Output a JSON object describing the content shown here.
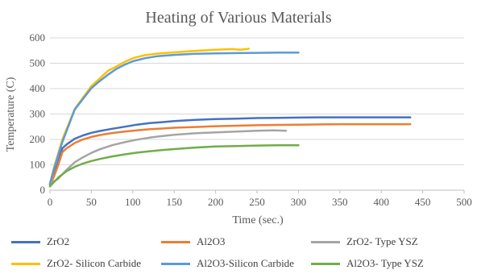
{
  "chart_data": {
    "type": "line",
    "title": "Heating of Various Materials",
    "xlabel": "Time (sec.)",
    "ylabel": "Temperature (C)",
    "xlim": [
      0,
      500
    ],
    "ylim": [
      0,
      600
    ],
    "xticks": [
      "0",
      "50",
      "100",
      "150",
      "200",
      "250",
      "300",
      "350",
      "400",
      "450",
      "500"
    ],
    "yticks": [
      "0",
      "100",
      "200",
      "300",
      "400",
      "500",
      "600"
    ],
    "grid": "horizontal",
    "legend_position": "bottom",
    "series": [
      {
        "name": "ZrO2",
        "color": "#4472C4",
        "points": [
          [
            0,
            22
          ],
          [
            5,
            60
          ],
          [
            10,
            110
          ],
          [
            15,
            165
          ],
          [
            20,
            180
          ],
          [
            30,
            203
          ],
          [
            40,
            216
          ],
          [
            50,
            226
          ],
          [
            60,
            233
          ],
          [
            75,
            242
          ],
          [
            90,
            250
          ],
          [
            105,
            258
          ],
          [
            120,
            264
          ],
          [
            135,
            268
          ],
          [
            150,
            272
          ],
          [
            175,
            277
          ],
          [
            200,
            280
          ],
          [
            225,
            282
          ],
          [
            250,
            284
          ],
          [
            275,
            285
          ],
          [
            300,
            286
          ],
          [
            325,
            287
          ],
          [
            350,
            287
          ],
          [
            375,
            287
          ],
          [
            400,
            287
          ],
          [
            435,
            287
          ]
        ]
      },
      {
        "name": "Al2O3",
        "color": "#ED7D31",
        "points": [
          [
            0,
            20
          ],
          [
            5,
            55
          ],
          [
            10,
            100
          ],
          [
            15,
            150
          ],
          [
            20,
            165
          ],
          [
            30,
            186
          ],
          [
            40,
            200
          ],
          [
            50,
            210
          ],
          [
            60,
            217
          ],
          [
            75,
            225
          ],
          [
            90,
            231
          ],
          [
            105,
            236
          ],
          [
            120,
            240
          ],
          [
            135,
            243
          ],
          [
            150,
            246
          ],
          [
            175,
            249
          ],
          [
            200,
            252
          ],
          [
            225,
            254
          ],
          [
            250,
            256
          ],
          [
            275,
            257
          ],
          [
            300,
            258
          ],
          [
            325,
            259
          ],
          [
            350,
            260
          ],
          [
            375,
            260
          ],
          [
            400,
            260
          ],
          [
            435,
            260
          ]
        ]
      },
      {
        "name": "ZrO2- Type YSZ",
        "color": "#A5A5A5",
        "points": [
          [
            0,
            25
          ],
          [
            10,
            45
          ],
          [
            20,
            80
          ],
          [
            30,
            110
          ],
          [
            40,
            130
          ],
          [
            50,
            147
          ],
          [
            60,
            161
          ],
          [
            75,
            177
          ],
          [
            90,
            189
          ],
          [
            105,
            199
          ],
          [
            120,
            207
          ],
          [
            135,
            213
          ],
          [
            150,
            218
          ],
          [
            175,
            224
          ],
          [
            200,
            228
          ],
          [
            225,
            231
          ],
          [
            250,
            234
          ],
          [
            270,
            236
          ],
          [
            285,
            234
          ]
        ]
      },
      {
        "name": "ZrO2- Silicon Carbide",
        "color": "#FFC000",
        "points": [
          [
            0,
            25
          ],
          [
            5,
            90
          ],
          [
            15,
            200
          ],
          [
            30,
            320
          ],
          [
            50,
            410
          ],
          [
            60,
            440
          ],
          [
            70,
            470
          ],
          [
            80,
            487
          ],
          [
            90,
            505
          ],
          [
            100,
            520
          ],
          [
            115,
            532
          ],
          [
            130,
            538
          ],
          [
            150,
            543
          ],
          [
            175,
            549
          ],
          [
            200,
            553
          ],
          [
            220,
            556
          ],
          [
            230,
            553
          ],
          [
            240,
            557
          ]
        ]
      },
      {
        "name": "Al2O3-Silicon Carbide",
        "color": "#5B9BD5",
        "points": [
          [
            0,
            25
          ],
          [
            5,
            85
          ],
          [
            15,
            190
          ],
          [
            30,
            318
          ],
          [
            50,
            402
          ],
          [
            60,
            430
          ],
          [
            70,
            455
          ],
          [
            80,
            477
          ],
          [
            90,
            494
          ],
          [
            100,
            508
          ],
          [
            115,
            520
          ],
          [
            130,
            528
          ],
          [
            150,
            533
          ],
          [
            175,
            537
          ],
          [
            200,
            539
          ],
          [
            225,
            540
          ],
          [
            250,
            541
          ],
          [
            275,
            542
          ],
          [
            300,
            542
          ]
        ]
      },
      {
        "name": "Al2O3- Type YSZ",
        "color": "#70AD47",
        "points": [
          [
            0,
            15
          ],
          [
            10,
            50
          ],
          [
            20,
            75
          ],
          [
            30,
            92
          ],
          [
            40,
            105
          ],
          [
            50,
            115
          ],
          [
            60,
            123
          ],
          [
            75,
            133
          ],
          [
            90,
            141
          ],
          [
            105,
            148
          ],
          [
            120,
            153
          ],
          [
            135,
            158
          ],
          [
            150,
            162
          ],
          [
            175,
            168
          ],
          [
            200,
            172
          ],
          [
            225,
            174
          ],
          [
            250,
            176
          ],
          [
            275,
            177
          ],
          [
            300,
            177
          ]
        ]
      }
    ]
  }
}
